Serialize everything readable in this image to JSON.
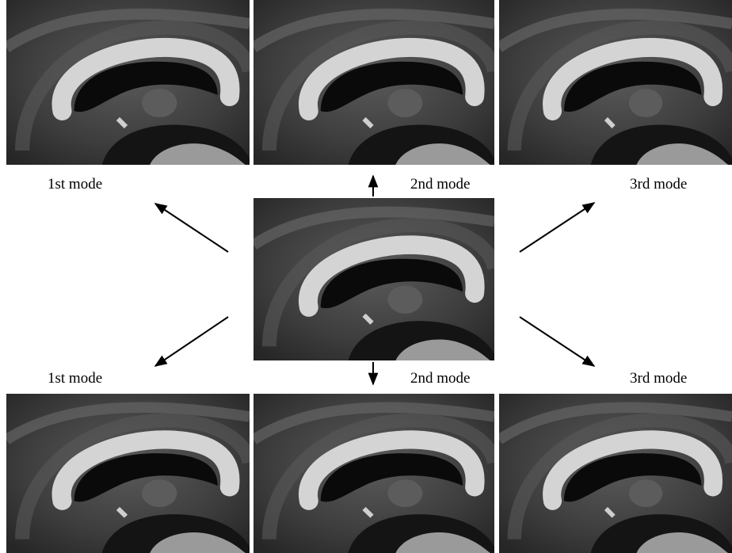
{
  "labels": {
    "top": [
      "1st mode",
      "2nd mode",
      "3rd mode"
    ],
    "bottom": [
      "1st mode",
      "2nd mode",
      "3rd mode"
    ]
  }
}
